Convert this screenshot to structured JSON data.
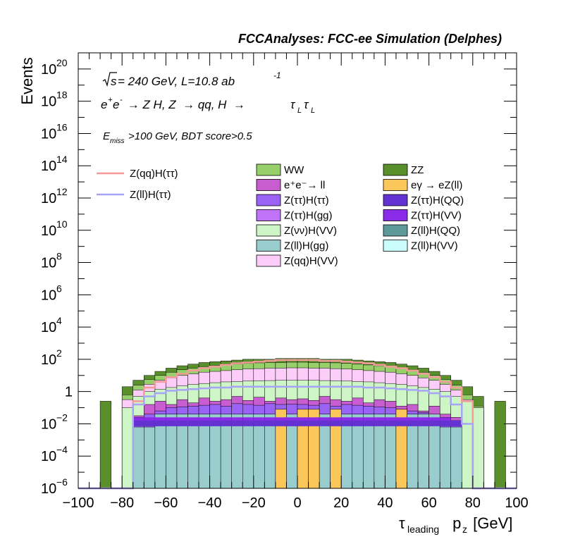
{
  "chart_data": {
    "type": "histogram",
    "title": "FCCAnalyses: FCC-ee Simulation (Delphes)",
    "annotations": {
      "energy": "√s = 240 GeV, L=10.8 ab",
      "energy_sup": "-1",
      "process": "e⁺e⁻ → Z H, Z → qq, H → τLτL",
      "process_parts": [
        "e",
        "+",
        "e",
        "-",
        " → Z H, Z  → qq, H  → ",
        "τ",
        "L",
        "τ",
        "L"
      ],
      "cut_prefix": "E",
      "cut_sub": "miss",
      "cut_suffix": ">100 GeV, BDT score>0.5"
    },
    "xlabel": "τleading pz [GeV]",
    "xlabel_parts": [
      "τ",
      "leading",
      " p",
      "z",
      " [GeV]"
    ],
    "ylabel": "Events",
    "log_y": true,
    "xlim": [
      -100,
      100
    ],
    "ylim_log10": [
      -6,
      21
    ],
    "x_ticks": [
      "−100",
      "−80",
      "−60",
      "−40",
      "−20",
      "0",
      "20",
      "40",
      "60",
      "80",
      "100"
    ],
    "x_tick_values": [
      -100,
      -80,
      -60,
      -40,
      -20,
      0,
      20,
      40,
      60,
      80,
      100
    ],
    "y_ticks": [
      {
        "base": "10",
        "exp": "−6",
        "log": -6
      },
      {
        "base": "10",
        "exp": "−4",
        "log": -4
      },
      {
        "base": "10",
        "exp": "−2",
        "log": -2
      },
      {
        "base": "1",
        "exp": "",
        "log": 0
      },
      {
        "base": "10",
        "exp": "2",
        "log": 2
      },
      {
        "base": "10",
        "exp": "4",
        "log": 4
      },
      {
        "base": "10",
        "exp": "6",
        "log": 6
      },
      {
        "base": "10",
        "exp": "8",
        "log": 8
      },
      {
        "base": "10",
        "exp": "10",
        "log": 10
      },
      {
        "base": "10",
        "exp": "12",
        "log": 12
      },
      {
        "base": "10",
        "exp": "14",
        "log": 14
      },
      {
        "base": "10",
        "exp": "16",
        "log": 16
      },
      {
        "base": "10",
        "exp": "18",
        "log": 18
      },
      {
        "base": "10",
        "exp": "20",
        "log": 20
      }
    ],
    "bin_width": 5,
    "bin_edges_start": -100,
    "stacked_totals_log10": {
      "note_bins": "40 bins of 5 GeV from -100 to 100",
      "ZZ": [
        -6.3,
        -6.3,
        -0.6,
        -6.3,
        0.3,
        0.7,
        1.0,
        1.25,
        1.45,
        1.6,
        1.7,
        1.8,
        1.85,
        1.9,
        1.95,
        2.0,
        2.0,
        2.0,
        2.05,
        2.05,
        2.05,
        2.05,
        2.0,
        2.0,
        2.0,
        1.95,
        1.9,
        1.85,
        1.8,
        1.7,
        1.6,
        1.45,
        1.25,
        1.0,
        0.7,
        0.3,
        -0.3,
        -6.3,
        -0.6,
        -6.3
      ],
      "WW": [
        -6.3,
        -6.3,
        -6.3,
        -6.3,
        -0.2,
        0.4,
        0.75,
        1.0,
        1.2,
        1.35,
        1.45,
        1.55,
        1.6,
        1.65,
        1.7,
        1.75,
        1.78,
        1.8,
        1.8,
        1.82,
        1.82,
        1.8,
        1.8,
        1.78,
        1.75,
        1.7,
        1.65,
        1.6,
        1.55,
        1.45,
        1.35,
        1.2,
        1.0,
        0.75,
        0.4,
        -0.2,
        -0.9,
        -6.3,
        -6.3,
        -6.3
      ],
      "Zqq_Hvv": [
        -6.3,
        -6.3,
        -6.3,
        -6.3,
        -0.5,
        0.1,
        0.45,
        0.7,
        0.85,
        1.0,
        1.1,
        1.2,
        1.25,
        1.3,
        1.35,
        1.4,
        1.42,
        1.45,
        1.45,
        1.47,
        1.47,
        1.45,
        1.45,
        1.42,
        1.4,
        1.35,
        1.3,
        1.25,
        1.2,
        1.1,
        1.0,
        0.85,
        0.7,
        0.45,
        0.1,
        -0.5,
        -1.2,
        -6.3,
        -6.3,
        -6.3
      ],
      "Zvv_Hvv": [
        -6.3,
        -6.3,
        -6.3,
        -6.3,
        -1.0,
        -0.3,
        0.0,
        0.15,
        0.25,
        0.35,
        0.45,
        0.5,
        0.55,
        0.6,
        0.62,
        0.65,
        0.67,
        0.68,
        0.7,
        0.7,
        0.7,
        0.7,
        0.68,
        0.67,
        0.65,
        0.62,
        0.6,
        0.55,
        0.5,
        0.45,
        0.35,
        0.25,
        0.15,
        0.0,
        -0.3,
        -0.6,
        -1.0,
        -6.3,
        -6.3,
        -6.3
      ],
      "ee_ll": [
        -6.3,
        -6.3,
        -6.3,
        -6.3,
        -6.3,
        -1.5,
        -0.8,
        -0.6,
        -0.8,
        -0.5,
        -0.7,
        -0.4,
        -0.6,
        -0.5,
        -0.3,
        -0.55,
        -0.35,
        -0.6,
        -0.4,
        -0.5,
        -0.45,
        -0.55,
        -0.3,
        -0.5,
        -0.6,
        -0.4,
        -0.7,
        -0.5,
        -0.6,
        -0.9,
        -0.8,
        -1.2,
        -0.9,
        -1.4,
        -1.6,
        -6.3,
        -6.3,
        -6.3,
        -6.3,
        -6.3
      ],
      "Ztt_Htt": [
        -6.3,
        -6.3,
        -6.3,
        -6.3,
        -6.3,
        -1.6,
        -1.4,
        -1.2,
        -1.0,
        -0.95,
        -0.9,
        -0.85,
        -0.8,
        -0.9,
        -0.75,
        -0.8,
        -0.85,
        -0.75,
        -0.8,
        -0.78,
        -0.8,
        -0.85,
        -0.75,
        -0.9,
        -0.8,
        -0.85,
        -0.9,
        -0.95,
        -1.0,
        -1.1,
        -1.2,
        -1.3,
        -1.5,
        -1.6,
        -1.8,
        -6.3,
        -6.3,
        -6.3,
        -6.3,
        -6.3
      ],
      "Zll_Hgg": [
        -6.3,
        -6.3,
        -6.3,
        -6.3,
        -6.3,
        -2.2,
        -2.2,
        -1.4,
        -1.4,
        -1.4,
        -1.4,
        -1.4,
        -1.4,
        -1.4,
        -1.4,
        -1.4,
        -1.4,
        -1.4,
        -1.4,
        -1.4,
        -1.4,
        -1.4,
        -1.4,
        -1.4,
        -1.4,
        -1.4,
        -1.4,
        -1.4,
        -1.4,
        -1.4,
        -1.4,
        -1.4,
        -1.4,
        -2.2,
        -2.2,
        -6.3,
        -6.3,
        -6.3,
        -6.3,
        -6.3
      ],
      "egamma_eZll": [
        -6.3,
        -6.3,
        -6.3,
        -6.3,
        -6.3,
        -6.3,
        -6.3,
        -6.3,
        -6.3,
        -6.3,
        -6.3,
        -6.3,
        -6.3,
        -6.3,
        -6.3,
        -6.3,
        -6.3,
        -6.3,
        -1.1,
        -6.3,
        -1.1,
        -1.1,
        -6.3,
        -1.1,
        -6.3,
        -6.3,
        -6.3,
        -6.3,
        -6.3,
        -1.1,
        -6.3,
        -6.3,
        -6.3,
        -6.3,
        -6.3,
        -6.3,
        -6.3,
        -6.3,
        -6.3,
        -6.3
      ]
    },
    "overlay_lines_log10": {
      "Zqq_Htt": [
        -6.3,
        -6.3,
        -6.3,
        -6.3,
        -6.3,
        -0.6,
        0.25,
        0.6,
        0.9,
        1.1,
        1.3,
        1.45,
        1.55,
        1.65,
        1.75,
        1.8,
        1.85,
        1.9,
        1.95,
        1.95,
        1.95,
        1.95,
        1.9,
        1.9,
        1.85,
        1.8,
        1.75,
        1.65,
        1.55,
        1.45,
        1.3,
        1.1,
        0.9,
        0.6,
        0.25,
        -0.6,
        -6.3,
        -6.3,
        -6.3,
        -6.3
      ],
      "Zll_Htt": [
        -6.3,
        -6.3,
        -6.3,
        -6.3,
        -6.3,
        -0.8,
        -0.3,
        -0.1,
        0.05,
        0.1,
        0.15,
        0.2,
        0.25,
        0.25,
        0.3,
        0.3,
        0.3,
        0.3,
        0.3,
        0.3,
        0.3,
        0.3,
        0.3,
        0.3,
        0.3,
        0.3,
        0.25,
        0.25,
        0.2,
        0.15,
        0.1,
        0.05,
        -0.1,
        -0.3,
        -0.8,
        -2.0,
        -6.3,
        -6.3,
        -6.3,
        -6.3
      ]
    },
    "legend_lines": [
      {
        "name": "Z(qq)H(ττ)",
        "color": "#f49a9a"
      },
      {
        "name": "Z(ll)H(ττ)",
        "color": "#a7a4f8"
      }
    ],
    "legend_fills": [
      {
        "name": "WW",
        "color": "#97d06a"
      },
      {
        "name": "ZZ",
        "color": "#5a902c"
      },
      {
        "name": "e⁺e⁻→ ll",
        "color": "#c75dcf"
      },
      {
        "name": "eγ → eZ(ll)",
        "color": "#fbc65a"
      },
      {
        "name": "Z(ττ)H(ττ)",
        "color": "#9a63f6"
      },
      {
        "name": "Z(ττ)H(QQ)",
        "color": "#6532d2"
      },
      {
        "name": "Z(ττ)H(gg)",
        "color": "#c072f8"
      },
      {
        "name": "Z(ττ)H(VV)",
        "color": "#8a2be8"
      },
      {
        "name": "Z(νν)H(VV)",
        "color": "#cef5c6"
      },
      {
        "name": "Z(ll)H(QQ)",
        "color": "#5d9999"
      },
      {
        "name": "Z(ll)H(gg)",
        "color": "#99cccc"
      },
      {
        "name": "Z(ll)H(VV)",
        "color": "#ccfdfd"
      },
      {
        "name": "Z(qq)H(VV)",
        "color": "#fccdf9"
      }
    ]
  }
}
